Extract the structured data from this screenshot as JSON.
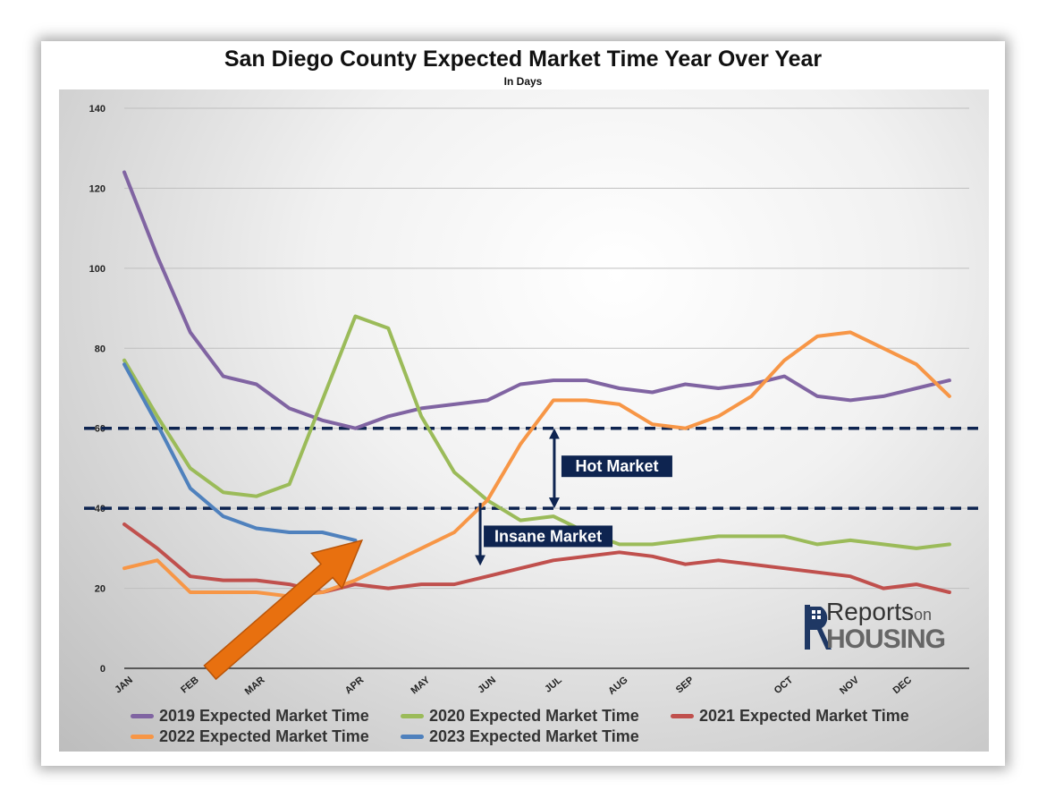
{
  "chart_data": {
    "type": "line",
    "title": "San Diego County Expected Market Time Year Over Year",
    "subtitle": "In Days",
    "ylim": [
      0,
      140
    ],
    "yticks": [
      0,
      20,
      40,
      60,
      80,
      100,
      120,
      140
    ],
    "xlim": [
      0,
      12.8
    ],
    "xticks": [
      {
        "label": "JAN",
        "x": 0
      },
      {
        "label": "FEB",
        "x": 1
      },
      {
        "label": "MAR",
        "x": 2
      },
      {
        "label": "APR",
        "x": 3.5
      },
      {
        "label": "MAY",
        "x": 4.5
      },
      {
        "label": "JUN",
        "x": 5.5
      },
      {
        "label": "JUL",
        "x": 6.5
      },
      {
        "label": "AUG",
        "x": 7.5
      },
      {
        "label": "SEP",
        "x": 8.5
      },
      {
        "label": "OCT",
        "x": 10
      },
      {
        "label": "NOV",
        "x": 11
      },
      {
        "label": "DEC",
        "x": 11.8
      }
    ],
    "grid": true,
    "legend_position": "bottom",
    "series": [
      {
        "name": "2019 Expected Market Time",
        "color": "#8064a2",
        "points": [
          [
            0,
            124
          ],
          [
            0.5,
            103
          ],
          [
            1,
            84
          ],
          [
            1.5,
            73
          ],
          [
            2,
            71
          ],
          [
            2.5,
            65
          ],
          [
            3,
            62
          ],
          [
            3.5,
            60
          ],
          [
            4,
            63
          ],
          [
            4.5,
            65
          ],
          [
            5,
            66
          ],
          [
            5.5,
            67
          ],
          [
            6,
            71
          ],
          [
            6.5,
            72
          ],
          [
            7,
            72
          ],
          [
            7.5,
            70
          ],
          [
            8,
            69
          ],
          [
            8.5,
            71
          ],
          [
            9,
            70
          ],
          [
            9.5,
            71
          ],
          [
            10,
            73
          ],
          [
            10.5,
            68
          ],
          [
            11,
            67
          ],
          [
            11.5,
            68
          ],
          [
            12,
            70
          ],
          [
            12.5,
            72
          ]
        ]
      },
      {
        "name": "2020 Expected Market Time",
        "color": "#9bbb59",
        "points": [
          [
            0,
            77
          ],
          [
            0.5,
            63
          ],
          [
            1,
            50
          ],
          [
            1.5,
            44
          ],
          [
            2,
            43
          ],
          [
            2.5,
            46
          ],
          [
            3,
            67
          ],
          [
            3.5,
            88
          ],
          [
            4,
            85
          ],
          [
            4.5,
            63
          ],
          [
            5,
            49
          ],
          [
            5.5,
            42
          ],
          [
            6,
            37
          ],
          [
            6.5,
            38
          ],
          [
            7,
            34
          ],
          [
            7.5,
            31
          ],
          [
            8,
            31
          ],
          [
            8.5,
            32
          ],
          [
            9,
            33
          ],
          [
            9.5,
            33
          ],
          [
            10,
            33
          ],
          [
            10.5,
            31
          ],
          [
            11,
            32
          ],
          [
            11.5,
            31
          ],
          [
            12,
            30
          ],
          [
            12.5,
            31
          ]
        ]
      },
      {
        "name": "2021 Expected Market Time",
        "color": "#c0504d",
        "points": [
          [
            0,
            36
          ],
          [
            0.5,
            30
          ],
          [
            1,
            23
          ],
          [
            1.5,
            22
          ],
          [
            2,
            22
          ],
          [
            2.5,
            21
          ],
          [
            3,
            19
          ],
          [
            3.5,
            21
          ],
          [
            4,
            20
          ],
          [
            4.5,
            21
          ],
          [
            5,
            21
          ],
          [
            5.5,
            23
          ],
          [
            6,
            25
          ],
          [
            6.5,
            27
          ],
          [
            7,
            28
          ],
          [
            7.5,
            29
          ],
          [
            8,
            28
          ],
          [
            8.5,
            26
          ],
          [
            9,
            27
          ],
          [
            9.5,
            26
          ],
          [
            10,
            25
          ],
          [
            10.5,
            24
          ],
          [
            11,
            23
          ],
          [
            11.5,
            20
          ],
          [
            12,
            21
          ],
          [
            12.5,
            19
          ]
        ]
      },
      {
        "name": "2022 Expected Market Time",
        "color": "#f79646",
        "points": [
          [
            0,
            25
          ],
          [
            0.5,
            27
          ],
          [
            1,
            19
          ],
          [
            1.5,
            19
          ],
          [
            2,
            19
          ],
          [
            2.5,
            18
          ],
          [
            3,
            19
          ],
          [
            3.5,
            22
          ],
          [
            4,
            26
          ],
          [
            4.5,
            30
          ],
          [
            5,
            34
          ],
          [
            5.5,
            42
          ],
          [
            6,
            56
          ],
          [
            6.5,
            67
          ],
          [
            7,
            67
          ],
          [
            7.5,
            66
          ],
          [
            8,
            61
          ],
          [
            8.5,
            60
          ],
          [
            9,
            63
          ],
          [
            9.5,
            68
          ],
          [
            10,
            77
          ],
          [
            10.5,
            83
          ],
          [
            11,
            84
          ],
          [
            11.5,
            80
          ],
          [
            12,
            76
          ],
          [
            12.5,
            68
          ]
        ]
      },
      {
        "name": "2023 Expected Market Time",
        "color": "#4f81bd",
        "points": [
          [
            0,
            76
          ],
          [
            0.5,
            61
          ],
          [
            1,
            45
          ],
          [
            1.5,
            38
          ],
          [
            2,
            35
          ],
          [
            2.5,
            34
          ],
          [
            3,
            34
          ],
          [
            3.5,
            32
          ]
        ]
      }
    ],
    "reference_lines": [
      60,
      40
    ],
    "annotations": [
      {
        "text": "Hot Market",
        "x": 7.3,
        "y": 50.5
      },
      {
        "text": "Insane Market",
        "x": 6.1,
        "y": 33
      }
    ],
    "arrow": {
      "from": [
        1.3,
        -1
      ],
      "to": [
        3.6,
        32
      ]
    }
  },
  "logo": {
    "top": "Reports",
    "small": "on",
    "bottom": "HOUSING"
  }
}
